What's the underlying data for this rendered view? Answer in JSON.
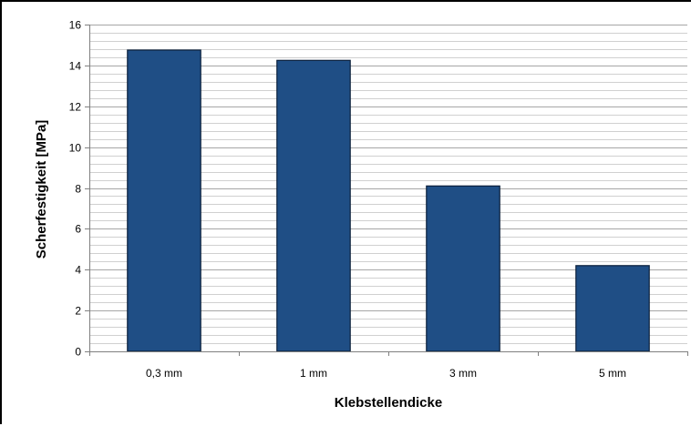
{
  "chart_data": {
    "type": "bar",
    "categories": [
      "0,3 mm",
      "1 mm",
      "3 mm",
      "5 mm"
    ],
    "values": [
      14.75,
      14.25,
      8.1,
      4.2
    ],
    "xlabel": "Klebstellendicke",
    "ylabel": "Scherfestigkeit [MPa]",
    "ylim": [
      0,
      16
    ],
    "yticks": [
      0,
      2,
      4,
      6,
      8,
      10,
      12,
      14,
      16
    ],
    "grid": true,
    "colors": {
      "bar_fill": "#1F4E85",
      "bar_edge": "#0A1F3A",
      "grid_major": "#A6A6A6",
      "grid_minor": "#D0D0D0",
      "axis": "#808080"
    }
  }
}
